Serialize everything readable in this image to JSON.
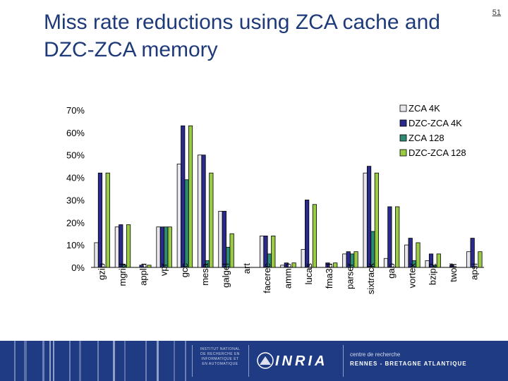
{
  "slide": {
    "title": "Miss rate reductions using ZCA cache and DZC-ZCA memory",
    "page_number": "51"
  },
  "footer": {
    "institute": "INSTITUT NATIONAL DE RECHERCHE EN INFORMATIQUE ET EN AUTOMATIQUE",
    "brand": "INRIA",
    "centre_line1": "centre de recherche",
    "centre_line2": "RENNES - BRETAGNE ATLANTIQUE",
    "bar_color": "#1f3b84"
  },
  "chart_data": {
    "type": "bar",
    "categories": [
      "gzip",
      "mgrid",
      "applu",
      "vpr",
      "gcc",
      "mesa",
      "galgel",
      "art",
      "facerec",
      "ammp",
      "lucas",
      "fma3d",
      "parser",
      "sixtrack",
      "gap",
      "vortex",
      "bzip2",
      "twolf",
      "apsi"
    ],
    "series": [
      {
        "name": "ZCA 4K",
        "color": "#e8e8ec",
        "values": [
          11,
          18,
          0,
          18,
          46,
          50,
          25,
          0,
          14,
          1,
          8,
          0,
          6,
          42,
          4,
          10,
          3,
          0,
          7
        ]
      },
      {
        "name": "DZC-ZCA 4K",
        "color": "#2a2a8c",
        "values": [
          42,
          19,
          1,
          18,
          63,
          50,
          25,
          0,
          14,
          2,
          30,
          2,
          7,
          45,
          27,
          13,
          6,
          1,
          13
        ]
      },
      {
        "name": "ZCA 128",
        "color": "#2e8a72",
        "values": [
          0,
          1,
          0,
          18,
          39,
          3,
          9,
          0,
          6,
          0,
          0,
          0,
          6,
          16,
          0,
          3,
          1,
          0,
          0
        ]
      },
      {
        "name": "DZC-ZCA 128",
        "color": "#99cc44",
        "values": [
          42,
          19,
          1,
          18,
          63,
          42,
          15,
          0,
          14,
          2,
          28,
          2,
          7,
          42,
          27,
          11,
          6,
          0,
          7
        ]
      }
    ],
    "y_ticks": [
      "0%",
      "10%",
      "20%",
      "30%",
      "40%",
      "50%",
      "60%",
      "70%"
    ],
    "ylim": [
      0,
      70
    ],
    "grid": false,
    "legend_position": "top-right",
    "x_tick_rotation": -90
  }
}
